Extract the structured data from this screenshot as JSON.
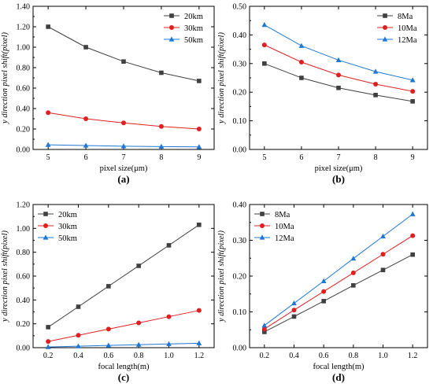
{
  "chart_data": [
    {
      "id": "a",
      "type": "line",
      "panel_label": "(a)",
      "xlabel": "pixel size(μm)",
      "ylabel": "y direction pixel shift(pixel)",
      "x": [
        5,
        6,
        7,
        8,
        9
      ],
      "x_tick_labels": [
        "5",
        "6",
        "7",
        "8",
        "9"
      ],
      "xlim": [
        4.6,
        9.4
      ],
      "ylim": [
        0,
        1.4
      ],
      "y_ticks": [
        0.0,
        0.2,
        0.4,
        0.6,
        0.8,
        1.0,
        1.2,
        1.4
      ],
      "y_tick_labels": [
        "0.00",
        "0.20",
        "0.40",
        "0.60",
        "0.80",
        "1.00",
        "1.20",
        "1.40"
      ],
      "legend_position": "top-right",
      "series": [
        {
          "name": "20km",
          "values": [
            1.2,
            1.0,
            0.86,
            0.75,
            0.67
          ],
          "color": "#404040",
          "marker": "square"
        },
        {
          "name": "30km",
          "values": [
            0.36,
            0.3,
            0.26,
            0.225,
            0.2
          ],
          "color": "#e02020",
          "marker": "circle"
        },
        {
          "name": "50km",
          "values": [
            0.045,
            0.038,
            0.032,
            0.028,
            0.025
          ],
          "color": "#1f77d4",
          "marker": "triangle"
        }
      ]
    },
    {
      "id": "b",
      "type": "line",
      "panel_label": "(b)",
      "xlabel": "pixel size(μm)",
      "ylabel": "y direction pixel shift(pixel)",
      "x": [
        5,
        6,
        7,
        8,
        9
      ],
      "x_tick_labels": [
        "5",
        "6",
        "7",
        "8",
        "9"
      ],
      "xlim": [
        4.6,
        9.4
      ],
      "ylim": [
        0,
        0.5
      ],
      "y_ticks": [
        0.0,
        0.1,
        0.2,
        0.3,
        0.4,
        0.5
      ],
      "y_tick_labels": [
        "0.00",
        "0.10",
        "0.20",
        "0.30",
        "0.40",
        "0.50"
      ],
      "legend_position": "top-right",
      "series": [
        {
          "name": "8Ma",
          "values": [
            0.3,
            0.25,
            0.215,
            0.19,
            0.168
          ],
          "color": "#404040",
          "marker": "square"
        },
        {
          "name": "10Ma",
          "values": [
            0.365,
            0.305,
            0.26,
            0.228,
            0.203
          ],
          "color": "#e02020",
          "marker": "circle"
        },
        {
          "name": "12Ma",
          "values": [
            0.435,
            0.362,
            0.312,
            0.272,
            0.242
          ],
          "color": "#1f77d4",
          "marker": "triangle"
        }
      ]
    },
    {
      "id": "c",
      "type": "line",
      "panel_label": "(c)",
      "xlabel": "focal length(m)",
      "ylabel": "y direction pixel shift(pixel)",
      "x": [
        0.2,
        0.4,
        0.6,
        0.8,
        1.0,
        1.2
      ],
      "x_tick_labels": [
        "0.2",
        "0.4",
        "0.6",
        "0.8",
        "1.0",
        "1.2"
      ],
      "xlim": [
        0.1,
        1.3
      ],
      "ylim": [
        0,
        1.2
      ],
      "y_ticks": [
        0.0,
        0.2,
        0.4,
        0.6,
        0.8,
        1.0,
        1.2
      ],
      "y_tick_labels": [
        "0.00",
        "0.20",
        "0.40",
        "0.60",
        "0.80",
        "1.00",
        "1.20"
      ],
      "legend_position": "top-left",
      "series": [
        {
          "name": "20km",
          "values": [
            0.172,
            0.343,
            0.515,
            0.686,
            0.858,
            1.03
          ],
          "color": "#404040",
          "marker": "square"
        },
        {
          "name": "30km",
          "values": [
            0.052,
            0.104,
            0.156,
            0.208,
            0.26,
            0.312
          ],
          "color": "#e02020",
          "marker": "circle"
        },
        {
          "name": "50km",
          "values": [
            0.006,
            0.012,
            0.019,
            0.025,
            0.031,
            0.037
          ],
          "color": "#1f77d4",
          "marker": "triangle"
        }
      ]
    },
    {
      "id": "d",
      "type": "line",
      "panel_label": "(d)",
      "xlabel": "focal length(m)",
      "ylabel": "y direction pixel shift(pixel)",
      "x": [
        0.2,
        0.4,
        0.6,
        0.8,
        1.0,
        1.2
      ],
      "x_tick_labels": [
        "0.2",
        "0.4",
        "0.6",
        "0.8",
        "1.0",
        "1.2"
      ],
      "xlim": [
        0.1,
        1.3
      ],
      "ylim": [
        0,
        0.4
      ],
      "y_ticks": [
        0.0,
        0.1,
        0.2,
        0.3,
        0.4
      ],
      "y_tick_labels": [
        "0.00",
        "0.10",
        "0.20",
        "0.30",
        "0.40"
      ],
      "legend_position": "top-left",
      "series": [
        {
          "name": "8Ma",
          "values": [
            0.044,
            0.087,
            0.13,
            0.174,
            0.217,
            0.26
          ],
          "color": "#404040",
          "marker": "square"
        },
        {
          "name": "10Ma",
          "values": [
            0.052,
            0.105,
            0.157,
            0.209,
            0.261,
            0.313
          ],
          "color": "#e02020",
          "marker": "circle"
        },
        {
          "name": "12Ma",
          "values": [
            0.062,
            0.124,
            0.186,
            0.249,
            0.311,
            0.373
          ],
          "color": "#1f77d4",
          "marker": "triangle"
        }
      ]
    }
  ]
}
